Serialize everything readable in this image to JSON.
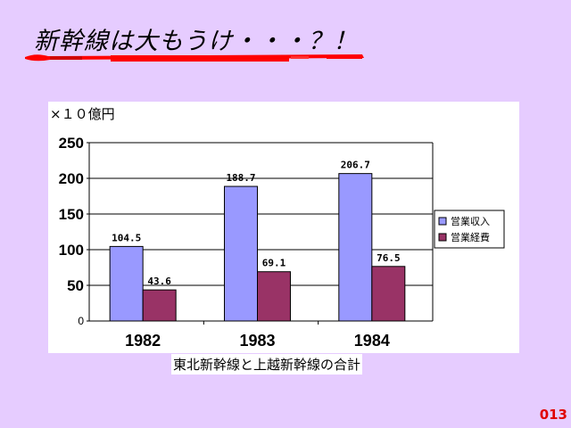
{
  "slide": {
    "title": "新幹線は大もうけ・・・？！",
    "page_number": "013",
    "accent_color": "#ff0000"
  },
  "chart_data": {
    "type": "bar",
    "unit_label": "×１０億円",
    "categories": [
      "1982",
      "1983",
      "1984"
    ],
    "series": [
      {
        "name": "営業収入",
        "values": [
          104.5,
          188.7,
          206.7
        ],
        "labels": [
          "104.5",
          "188.7",
          "206.7"
        ],
        "color": "#9999ff"
      },
      {
        "name": "営業経費",
        "values": [
          43.6,
          69.1,
          76.5
        ],
        "labels": [
          "43.6",
          "69.1",
          "76.5"
        ],
        "color": "#993366"
      }
    ],
    "yticks": [
      "0",
      "50",
      "100",
      "150",
      "200",
      "250"
    ],
    "ylim": [
      0,
      250
    ],
    "grid": true,
    "legend_position": "right",
    "caption": "東北新幹線と上越新幹線の合計"
  }
}
